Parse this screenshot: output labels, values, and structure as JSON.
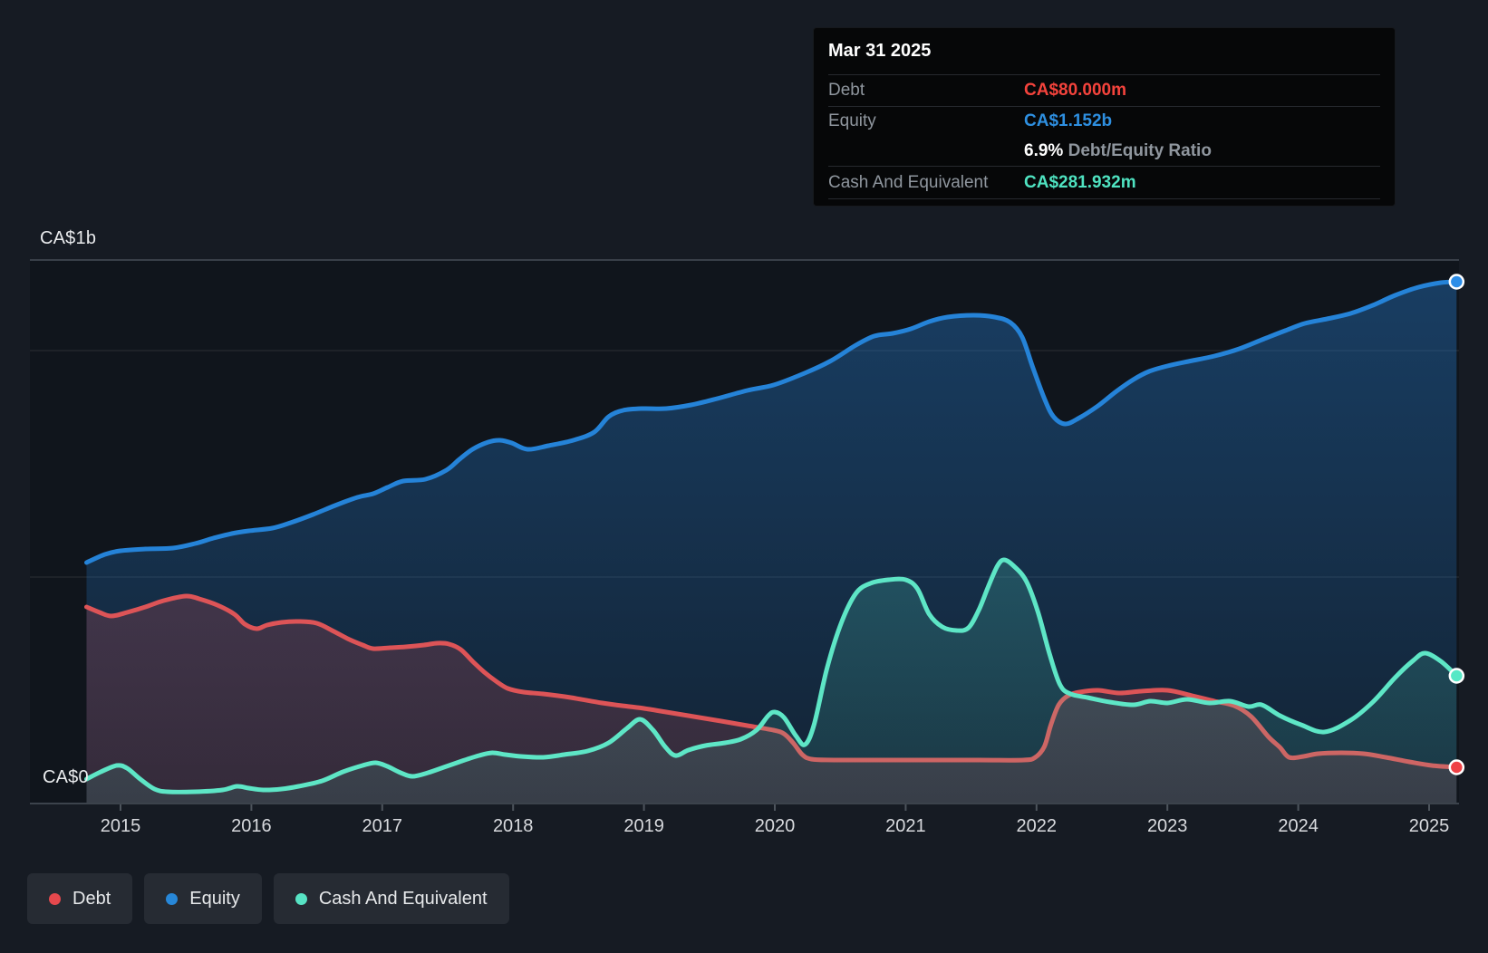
{
  "tooltip": {
    "date": "Mar 31 2025",
    "debt": {
      "label": "Debt",
      "value": "CA$80.000m"
    },
    "equity": {
      "label": "Equity",
      "value": "CA$1.152b"
    },
    "ratio": {
      "value": "6.9%",
      "label": "Debt/Equity Ratio"
    },
    "cash": {
      "label": "Cash And Equivalent",
      "value": "CA$281.932m"
    }
  },
  "legend": {
    "items": [
      {
        "label": "Debt",
        "color": "#e5484d"
      },
      {
        "label": "Equity",
        "color": "#2787d8"
      },
      {
        "label": "Cash And Equivalent",
        "color": "#57e3c4"
      }
    ]
  },
  "chart_data": {
    "type": "area",
    "unit": "CA$ millions",
    "x_axis": {
      "ticks": [
        "2015",
        "2016",
        "2017",
        "2018",
        "2019",
        "2020",
        "2021",
        "2022",
        "2023",
        "2024",
        "2025"
      ],
      "range_years": [
        2014.74,
        2025.25
      ]
    },
    "y_axis": {
      "labels": [
        "CA$1b",
        "CA$0"
      ],
      "gridline_values_m": [
        1000,
        500,
        0
      ],
      "top_m": 1200
    },
    "grid": {
      "line_color": "rgba(255,255,255,0.08)",
      "border_color": "#394049",
      "axis_color": "#3c434c",
      "tick_color": "#4d545c",
      "tick_label_color": "#d8dade",
      "plot_bg": "#10151c"
    },
    "series": [
      {
        "name": "Equity",
        "color": "#2583d8",
        "dot": "#2b8de8",
        "fill_top": "rgba(36,120,200,0.42)",
        "fill_bottom": "rgba(36,120,200,0.14)",
        "points": [
          [
            2014.74,
            532
          ],
          [
            2014.88,
            550
          ],
          [
            2015.0,
            558
          ],
          [
            2015.19,
            562
          ],
          [
            2015.4,
            564
          ],
          [
            2015.57,
            574
          ],
          [
            2015.71,
            586
          ],
          [
            2015.85,
            596
          ],
          [
            2015.98,
            602
          ],
          [
            2016.16,
            608
          ],
          [
            2016.3,
            620
          ],
          [
            2016.47,
            638
          ],
          [
            2016.64,
            658
          ],
          [
            2016.81,
            676
          ],
          [
            2016.93,
            684
          ],
          [
            2017.04,
            698
          ],
          [
            2017.16,
            712
          ],
          [
            2017.33,
            716
          ],
          [
            2017.49,
            736
          ],
          [
            2017.59,
            760
          ],
          [
            2017.69,
            782
          ],
          [
            2017.81,
            798
          ],
          [
            2017.9,
            802
          ],
          [
            2017.99,
            796
          ],
          [
            2018.11,
            782
          ],
          [
            2018.27,
            790
          ],
          [
            2018.46,
            802
          ],
          [
            2018.62,
            820
          ],
          [
            2018.73,
            854
          ],
          [
            2018.84,
            868
          ],
          [
            2018.99,
            872
          ],
          [
            2019.17,
            872
          ],
          [
            2019.36,
            880
          ],
          [
            2019.56,
            894
          ],
          [
            2019.79,
            912
          ],
          [
            2019.99,
            924
          ],
          [
            2020.21,
            948
          ],
          [
            2020.42,
            976
          ],
          [
            2020.62,
            1012
          ],
          [
            2020.76,
            1032
          ],
          [
            2020.9,
            1038
          ],
          [
            2021.04,
            1048
          ],
          [
            2021.18,
            1064
          ],
          [
            2021.32,
            1074
          ],
          [
            2021.52,
            1078
          ],
          [
            2021.68,
            1074
          ],
          [
            2021.8,
            1062
          ],
          [
            2021.89,
            1030
          ],
          [
            2021.97,
            964
          ],
          [
            2022.06,
            894
          ],
          [
            2022.13,
            854
          ],
          [
            2022.22,
            838
          ],
          [
            2022.33,
            852
          ],
          [
            2022.47,
            878
          ],
          [
            2022.61,
            910
          ],
          [
            2022.74,
            936
          ],
          [
            2022.86,
            954
          ],
          [
            2023.0,
            966
          ],
          [
            2023.16,
            976
          ],
          [
            2023.36,
            988
          ],
          [
            2023.55,
            1004
          ],
          [
            2023.74,
            1026
          ],
          [
            2023.9,
            1044
          ],
          [
            2024.05,
            1060
          ],
          [
            2024.22,
            1070
          ],
          [
            2024.4,
            1082
          ],
          [
            2024.57,
            1100
          ],
          [
            2024.74,
            1122
          ],
          [
            2024.92,
            1140
          ],
          [
            2025.09,
            1150
          ],
          [
            2025.21,
            1152
          ]
        ]
      },
      {
        "name": "Debt",
        "color": "#dd5457",
        "dot": "#ef4146",
        "fill_top": "rgba(226,80,84,0.30)",
        "fill_bottom": "rgba(226,80,84,0.16)",
        "points": [
          [
            2014.74,
            434
          ],
          [
            2014.84,
            422
          ],
          [
            2014.93,
            414
          ],
          [
            2015.05,
            422
          ],
          [
            2015.19,
            434
          ],
          [
            2015.33,
            448
          ],
          [
            2015.5,
            458
          ],
          [
            2015.6,
            452
          ],
          [
            2015.74,
            438
          ],
          [
            2015.87,
            418
          ],
          [
            2015.95,
            396
          ],
          [
            2016.04,
            386
          ],
          [
            2016.12,
            394
          ],
          [
            2016.23,
            400
          ],
          [
            2016.36,
            402
          ],
          [
            2016.5,
            398
          ],
          [
            2016.63,
            380
          ],
          [
            2016.75,
            362
          ],
          [
            2016.85,
            350
          ],
          [
            2016.93,
            342
          ],
          [
            2017.06,
            344
          ],
          [
            2017.18,
            346
          ],
          [
            2017.32,
            350
          ],
          [
            2017.42,
            354
          ],
          [
            2017.51,
            352
          ],
          [
            2017.6,
            340
          ],
          [
            2017.69,
            314
          ],
          [
            2017.78,
            290
          ],
          [
            2017.87,
            270
          ],
          [
            2017.96,
            254
          ],
          [
            2018.08,
            246
          ],
          [
            2018.23,
            242
          ],
          [
            2018.44,
            234
          ],
          [
            2018.68,
            222
          ],
          [
            2018.89,
            214
          ],
          [
            2019.0,
            210
          ],
          [
            2019.17,
            202
          ],
          [
            2019.38,
            192
          ],
          [
            2019.59,
            182
          ],
          [
            2019.79,
            172
          ],
          [
            2019.99,
            162
          ],
          [
            2020.07,
            154
          ],
          [
            2020.14,
            134
          ],
          [
            2020.21,
            108
          ],
          [
            2020.28,
            98
          ],
          [
            2020.45,
            96
          ],
          [
            2021.0,
            96
          ],
          [
            2021.56,
            96
          ],
          [
            2021.9,
            96
          ],
          [
            2021.99,
            102
          ],
          [
            2022.06,
            126
          ],
          [
            2022.11,
            174
          ],
          [
            2022.17,
            218
          ],
          [
            2022.24,
            238
          ],
          [
            2022.33,
            246
          ],
          [
            2022.47,
            250
          ],
          [
            2022.63,
            244
          ],
          [
            2022.8,
            248
          ],
          [
            2023.0,
            250
          ],
          [
            2023.19,
            238
          ],
          [
            2023.36,
            226
          ],
          [
            2023.51,
            216
          ],
          [
            2023.64,
            192
          ],
          [
            2023.77,
            148
          ],
          [
            2023.86,
            124
          ],
          [
            2023.93,
            102
          ],
          [
            2024.04,
            104
          ],
          [
            2024.15,
            110
          ],
          [
            2024.33,
            112
          ],
          [
            2024.5,
            110
          ],
          [
            2024.67,
            102
          ],
          [
            2024.85,
            92
          ],
          [
            2025.02,
            84
          ],
          [
            2025.21,
            80
          ]
        ]
      },
      {
        "name": "Cash And Equivalent",
        "color": "#5ee6c6",
        "dot": "#57e8c6",
        "fill_top": "rgba(88,230,198,0.30)",
        "fill_bottom": "rgba(88,230,198,0.10)",
        "points": [
          [
            2014.74,
            54
          ],
          [
            2014.85,
            70
          ],
          [
            2014.97,
            84
          ],
          [
            2015.05,
            78
          ],
          [
            2015.15,
            54
          ],
          [
            2015.26,
            32
          ],
          [
            2015.36,
            26
          ],
          [
            2015.57,
            26
          ],
          [
            2015.78,
            30
          ],
          [
            2015.89,
            38
          ],
          [
            2015.98,
            34
          ],
          [
            2016.09,
            30
          ],
          [
            2016.23,
            32
          ],
          [
            2016.36,
            38
          ],
          [
            2016.54,
            50
          ],
          [
            2016.7,
            70
          ],
          [
            2016.85,
            84
          ],
          [
            2016.95,
            90
          ],
          [
            2017.04,
            82
          ],
          [
            2017.14,
            68
          ],
          [
            2017.23,
            60
          ],
          [
            2017.35,
            68
          ],
          [
            2017.47,
            80
          ],
          [
            2017.61,
            94
          ],
          [
            2017.74,
            106
          ],
          [
            2017.84,
            112
          ],
          [
            2017.94,
            108
          ],
          [
            2018.06,
            104
          ],
          [
            2018.23,
            102
          ],
          [
            2018.39,
            108
          ],
          [
            2018.57,
            116
          ],
          [
            2018.73,
            134
          ],
          [
            2018.87,
            166
          ],
          [
            2018.97,
            186
          ],
          [
            2019.07,
            162
          ],
          [
            2019.16,
            126
          ],
          [
            2019.24,
            106
          ],
          [
            2019.34,
            118
          ],
          [
            2019.47,
            128
          ],
          [
            2019.62,
            134
          ],
          [
            2019.74,
            142
          ],
          [
            2019.86,
            162
          ],
          [
            2019.95,
            194
          ],
          [
            2020.0,
            202
          ],
          [
            2020.07,
            190
          ],
          [
            2020.16,
            150
          ],
          [
            2020.23,
            130
          ],
          [
            2020.3,
            174
          ],
          [
            2020.4,
            300
          ],
          [
            2020.51,
            400
          ],
          [
            2020.62,
            464
          ],
          [
            2020.73,
            486
          ],
          [
            2020.87,
            494
          ],
          [
            2021.0,
            494
          ],
          [
            2021.09,
            474
          ],
          [
            2021.18,
            418
          ],
          [
            2021.28,
            390
          ],
          [
            2021.39,
            382
          ],
          [
            2021.48,
            388
          ],
          [
            2021.56,
            428
          ],
          [
            2021.63,
            478
          ],
          [
            2021.7,
            524
          ],
          [
            2021.75,
            538
          ],
          [
            2021.82,
            526
          ],
          [
            2021.92,
            492
          ],
          [
            2022.01,
            424
          ],
          [
            2022.1,
            330
          ],
          [
            2022.18,
            262
          ],
          [
            2022.26,
            242
          ],
          [
            2022.39,
            234
          ],
          [
            2022.56,
            224
          ],
          [
            2022.74,
            218
          ],
          [
            2022.87,
            226
          ],
          [
            2023.0,
            222
          ],
          [
            2023.15,
            230
          ],
          [
            2023.32,
            222
          ],
          [
            2023.48,
            226
          ],
          [
            2023.62,
            214
          ],
          [
            2023.72,
            218
          ],
          [
            2023.86,
            194
          ],
          [
            2024.02,
            174
          ],
          [
            2024.2,
            158
          ],
          [
            2024.4,
            184
          ],
          [
            2024.57,
            224
          ],
          [
            2024.74,
            278
          ],
          [
            2024.88,
            316
          ],
          [
            2024.97,
            332
          ],
          [
            2025.09,
            314
          ],
          [
            2025.21,
            282
          ]
        ]
      }
    ],
    "end_values_m": {
      "Equity": 1152,
      "Debt": 80,
      "Cash And Equivalent": 281.932
    }
  }
}
